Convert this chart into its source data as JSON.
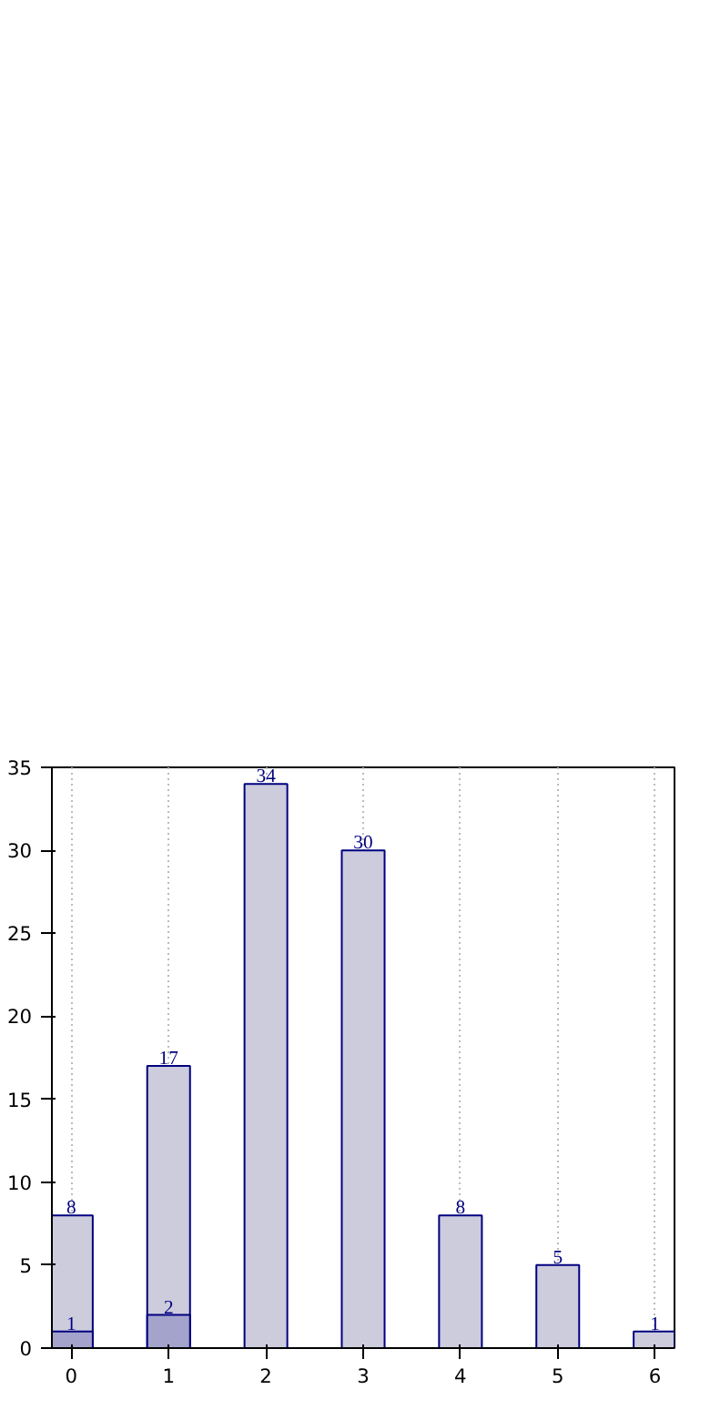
{
  "chart_data": {
    "type": "bar",
    "x": [
      0,
      1,
      2,
      3,
      4,
      5,
      6
    ],
    "series": [
      {
        "color": "#ccccdd",
        "values": [
          8,
          17,
          34,
          30,
          8,
          5,
          1
        ]
      },
      {
        "color": "#a3a3cc",
        "values": [
          1,
          2,
          null,
          null,
          null,
          null,
          null
        ]
      }
    ],
    "xlim": [
      -0.2,
      6.2
    ],
    "xticks": [
      0,
      1,
      2,
      3,
      4,
      5,
      6
    ],
    "ylim": [
      0,
      35
    ],
    "yticks": [
      0,
      5,
      10,
      15,
      20,
      25,
      30,
      35
    ],
    "grid": "x",
    "data_labels": true
  }
}
